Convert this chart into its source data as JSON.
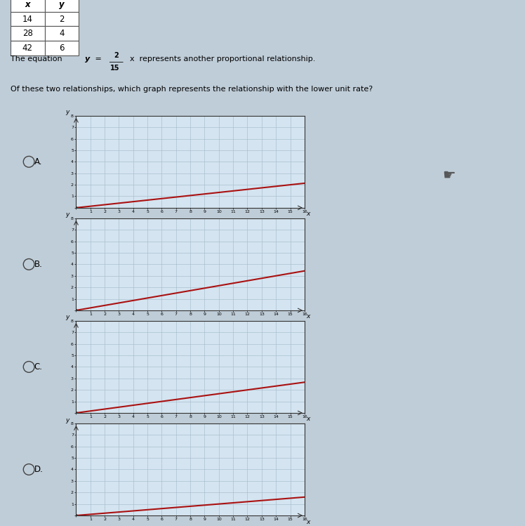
{
  "bg_color": "#bfcdd8",
  "table_headers": [
    "x",
    "y"
  ],
  "table_rows": [
    [
      "14",
      "2"
    ],
    [
      "28",
      "4"
    ],
    [
      "42",
      "6"
    ]
  ],
  "question": "Of these two relationships, which graph represents the relationship with the lower unit rate?",
  "options": [
    "A",
    "B",
    "C",
    "D"
  ],
  "slopes": [
    0.1333,
    0.2143,
    0.1667,
    0.1
  ],
  "graph_bg": "#d4e4f0",
  "grid_color": "#a0b8c8",
  "line_color": "#aa1111",
  "orange_bg": "#d4a040",
  "orange_border": "#c89030",
  "x_max": 16,
  "y_max": 8,
  "fig_w": 7.48,
  "fig_h": 7.49
}
